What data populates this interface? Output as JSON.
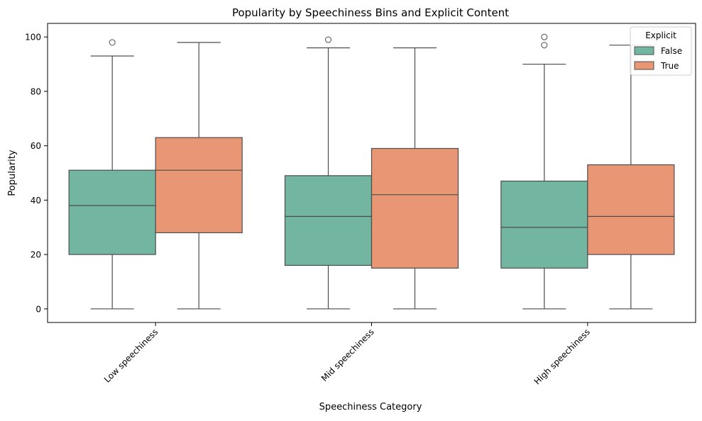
{
  "chart_data": {
    "type": "box",
    "title": "Popularity by Speechiness Bins and Explicit Content",
    "xlabel": "Speechiness Category",
    "ylabel": "Popularity",
    "categories": [
      "Low speechiness",
      "Mid speechiness",
      "High speechiness"
    ],
    "ylim": [
      -5,
      105
    ],
    "yticks": [
      0,
      20,
      40,
      60,
      80,
      100
    ],
    "grid": false,
    "legend": {
      "title": "Explicit",
      "placement": "top-right",
      "entries": [
        "False",
        "True"
      ]
    },
    "series": [
      {
        "name": "False",
        "color": "#72b6a1",
        "boxes": [
          {
            "whisker_low": 0,
            "q1": 20,
            "median": 38,
            "q3": 51,
            "whisker_high": 93,
            "outliers": [
              98
            ]
          },
          {
            "whisker_low": 0,
            "q1": 16,
            "median": 34,
            "q3": 49,
            "whisker_high": 96,
            "outliers": [
              99
            ]
          },
          {
            "whisker_low": 0,
            "q1": 15,
            "median": 30,
            "q3": 47,
            "whisker_high": 90,
            "outliers": [
              97,
              100
            ]
          }
        ]
      },
      {
        "name": "True",
        "color": "#e99675",
        "boxes": [
          {
            "whisker_low": 0,
            "q1": 28,
            "median": 51,
            "q3": 63,
            "whisker_high": 98,
            "outliers": []
          },
          {
            "whisker_low": 0,
            "q1": 15,
            "median": 42,
            "q3": 59,
            "whisker_high": 96,
            "outliers": []
          },
          {
            "whisker_low": 0,
            "q1": 20,
            "median": 34,
            "q3": 53,
            "whisker_high": 97,
            "outliers": []
          }
        ]
      }
    ]
  }
}
